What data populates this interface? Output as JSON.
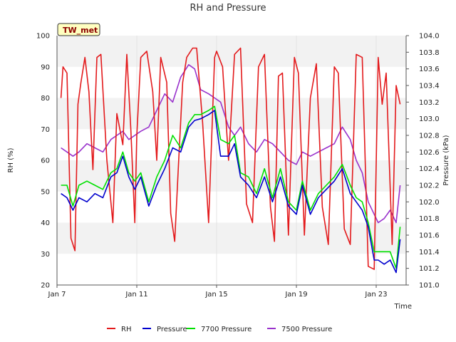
{
  "chart_data": {
    "type": "line",
    "title": "RH and Pressure",
    "xlabel": "Time",
    "ylabel_left": "RH (%)",
    "ylabel_right": "Pressure (kPa)",
    "station_badge": "TW_met",
    "x_start": "Jan 7",
    "x_end": "Jan 24",
    "x_ticks": [
      {
        "label": "Jan 7",
        "day": 7
      },
      {
        "label": "Jan 11",
        "day": 11
      },
      {
        "label": "Jan 15",
        "day": 15
      },
      {
        "label": "Jan 19",
        "day": 19
      },
      {
        "label": "Jan 23",
        "day": 23
      }
    ],
    "y_left_range": [
      20,
      100
    ],
    "y_left_ticks": [
      "20",
      "30",
      "40",
      "50",
      "60",
      "70",
      "80",
      "90",
      "100"
    ],
    "y_right_range": [
      101.0,
      104.0
    ],
    "y_right_ticks": [
      "101.0",
      "101.2",
      "101.4",
      "101.6",
      "101.8",
      "102.0",
      "102.2",
      "102.4",
      "102.6",
      "102.8",
      "103.0",
      "103.2",
      "103.4",
      "103.6",
      "103.8",
      "104.0"
    ],
    "grid": true,
    "legend_position": "bottom",
    "series": [
      {
        "name": "RH",
        "axis": "left",
        "color": "#e31a1c",
        "x": [
          7.2,
          7.3,
          7.5,
          7.7,
          7.9,
          8.05,
          8.2,
          8.4,
          8.6,
          8.8,
          9.0,
          9.2,
          9.5,
          9.8,
          10.0,
          10.3,
          10.5,
          10.7,
          10.9,
          11.0,
          11.2,
          11.5,
          11.8,
          12.0,
          12.2,
          12.5,
          12.7,
          12.9,
          13.1,
          13.3,
          13.5,
          13.8,
          14.0,
          14.3,
          14.6,
          14.9,
          15.0,
          15.3,
          15.6,
          15.9,
          16.2,
          16.5,
          16.8,
          17.1,
          17.4,
          17.7,
          17.9,
          18.1,
          18.3,
          18.6,
          18.9,
          19.1,
          19.4,
          19.7,
          20.0,
          20.3,
          20.6,
          20.9,
          21.1,
          21.4,
          21.7,
          22.0,
          22.3,
          22.6,
          22.9,
          23.1,
          23.3,
          23.5,
          23.8,
          24.0,
          24.2
        ],
        "values": [
          80,
          90,
          88,
          35,
          31,
          78,
          85,
          93,
          82,
          57,
          93,
          94,
          60,
          40,
          75,
          65,
          94,
          70,
          40,
          68,
          93,
          95,
          82,
          60,
          93,
          85,
          43,
          34,
          60,
          85,
          93,
          96,
          96,
          72,
          40,
          93,
          95,
          90,
          60,
          94,
          96,
          46,
          40,
          90,
          94,
          45,
          34,
          87,
          88,
          36,
          93,
          88,
          36,
          80,
          91,
          45,
          33,
          90,
          88,
          38,
          33,
          94,
          93,
          26,
          25,
          93,
          78,
          88,
          33,
          84,
          78
        ]
      },
      {
        "name": "Pressure",
        "axis": "right",
        "color": "#0000cd",
        "x": [
          7.2,
          7.5,
          7.8,
          8.1,
          8.5,
          8.9,
          9.3,
          9.7,
          10.0,
          10.3,
          10.6,
          10.9,
          11.2,
          11.6,
          12.0,
          12.4,
          12.8,
          13.2,
          13.6,
          13.9,
          14.2,
          14.6,
          14.9,
          15.2,
          15.6,
          15.9,
          16.2,
          16.6,
          17.0,
          17.4,
          17.8,
          18.2,
          18.6,
          19.0,
          19.3,
          19.7,
          20.1,
          20.5,
          20.9,
          21.3,
          21.7,
          22.0,
          22.3,
          22.6,
          22.9,
          23.1,
          23.4,
          23.7,
          24.0,
          24.2
        ],
        "values": [
          102.1,
          102.05,
          101.9,
          102.05,
          102.0,
          102.1,
          102.05,
          102.3,
          102.35,
          102.55,
          102.3,
          102.15,
          102.3,
          101.95,
          102.2,
          102.4,
          102.65,
          102.6,
          102.9,
          102.98,
          103.0,
          103.05,
          103.1,
          102.55,
          102.55,
          102.7,
          102.3,
          102.2,
          102.05,
          102.3,
          102.0,
          102.3,
          101.95,
          101.85,
          102.2,
          101.85,
          102.05,
          102.15,
          102.25,
          102.4,
          102.1,
          102.0,
          101.9,
          101.7,
          101.3,
          101.3,
          101.25,
          101.3,
          101.15,
          101.55
        ]
      },
      {
        "name": "7700 Pressure",
        "axis": "right",
        "color": "#00e000",
        "x": [
          7.2,
          7.5,
          7.8,
          8.1,
          8.5,
          8.9,
          9.3,
          9.7,
          10.0,
          10.3,
          10.6,
          10.9,
          11.2,
          11.6,
          12.0,
          12.4,
          12.8,
          13.2,
          13.6,
          13.9,
          14.2,
          14.6,
          14.9,
          15.2,
          15.6,
          15.9,
          16.2,
          16.6,
          17.0,
          17.4,
          17.8,
          18.2,
          18.6,
          19.0,
          19.3,
          19.7,
          20.1,
          20.5,
          20.9,
          21.3,
          21.7,
          22.0,
          22.3,
          22.6,
          22.9,
          23.1,
          23.4,
          23.7,
          24.0,
          24.2
        ],
        "values": [
          102.2,
          102.2,
          101.95,
          102.2,
          102.25,
          102.2,
          102.15,
          102.35,
          102.4,
          102.6,
          102.35,
          102.25,
          102.35,
          102.0,
          102.3,
          102.5,
          102.8,
          102.65,
          102.95,
          103.05,
          103.05,
          103.1,
          103.15,
          102.75,
          102.7,
          102.8,
          102.35,
          102.3,
          102.1,
          102.4,
          102.05,
          102.4,
          102.0,
          101.9,
          102.25,
          101.9,
          102.1,
          102.2,
          102.3,
          102.45,
          102.2,
          102.05,
          102.0,
          101.75,
          101.4,
          101.4,
          101.4,
          101.4,
          101.2,
          101.7
        ]
      },
      {
        "name": "7500 Pressure",
        "axis": "right",
        "color": "#9932cc",
        "x": [
          7.2,
          7.5,
          7.8,
          8.1,
          8.5,
          8.9,
          9.3,
          9.7,
          10.0,
          10.3,
          10.6,
          10.9,
          11.2,
          11.6,
          12.0,
          12.4,
          12.8,
          13.2,
          13.6,
          13.9,
          14.2,
          14.6,
          14.9,
          15.2,
          15.6,
          15.9,
          16.2,
          16.6,
          17.0,
          17.4,
          17.8,
          18.2,
          18.6,
          19.0,
          19.3,
          19.7,
          20.1,
          20.5,
          20.9,
          21.3,
          21.7,
          22.0,
          22.3,
          22.6,
          22.9,
          23.1,
          23.4,
          23.7,
          24.0,
          24.2
        ],
        "values": [
          102.65,
          102.6,
          102.55,
          102.6,
          102.7,
          102.65,
          102.6,
          102.75,
          102.8,
          102.85,
          102.75,
          102.8,
          102.85,
          102.9,
          103.1,
          103.3,
          103.2,
          103.5,
          103.65,
          103.6,
          103.35,
          103.3,
          103.25,
          103.2,
          102.9,
          102.8,
          102.9,
          102.7,
          102.6,
          102.75,
          102.7,
          102.6,
          102.5,
          102.45,
          102.6,
          102.55,
          102.6,
          102.65,
          102.7,
          102.9,
          102.75,
          102.5,
          102.35,
          102.0,
          101.85,
          101.75,
          101.8,
          101.9,
          101.75,
          102.2
        ]
      }
    ]
  }
}
